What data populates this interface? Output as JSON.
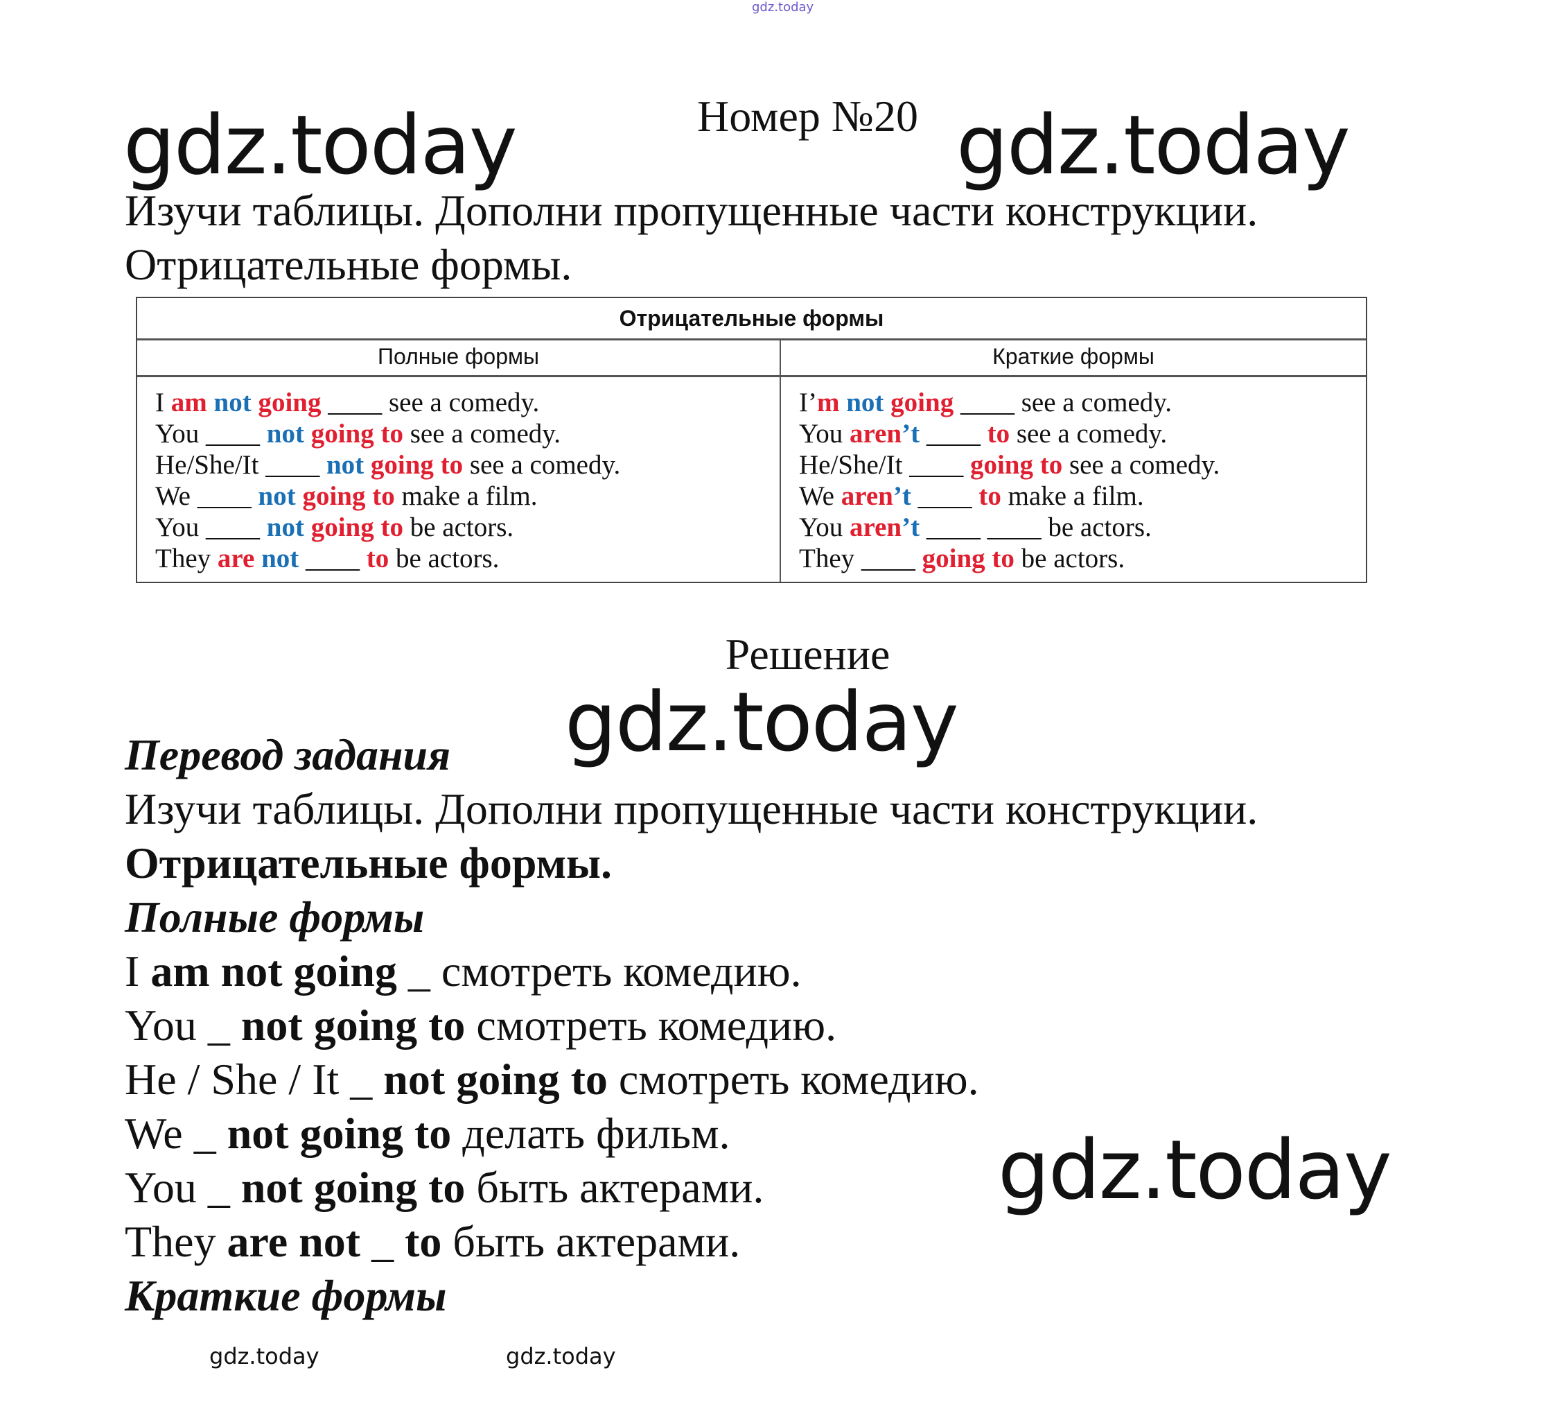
{
  "watermarks": {
    "top": "gdz.today",
    "large": "gdz.today",
    "small": "gdz.today"
  },
  "title": "Номер №20",
  "task": {
    "line1": "Изучи таблицы. Дополни пропущенные части конструкции.",
    "line2": "Отрицательные формы."
  },
  "colors": {
    "red": "#e02030",
    "blue": "#1a6fb5"
  },
  "table": {
    "header": "Отрицательные формы",
    "left_header": "Полные формы",
    "right_header": "Краткие формы",
    "left_rows": [
      [
        {
          "t": "I "
        },
        {
          "t": "am",
          "c": "r"
        },
        {
          "t": " "
        },
        {
          "t": "not",
          "c": "b"
        },
        {
          "t": " "
        },
        {
          "t": "going",
          "c": "r"
        },
        {
          "t": " ____ see a comedy."
        }
      ],
      [
        {
          "t": "You ____ "
        },
        {
          "t": "not",
          "c": "b"
        },
        {
          "t": " "
        },
        {
          "t": "going to",
          "c": "r"
        },
        {
          "t": " see a comedy."
        }
      ],
      [
        {
          "t": "He/She/It ____ "
        },
        {
          "t": "not",
          "c": "b"
        },
        {
          "t": " "
        },
        {
          "t": "going to",
          "c": "r"
        },
        {
          "t": " see a comedy."
        }
      ],
      [
        {
          "t": "We ____ "
        },
        {
          "t": "not",
          "c": "b"
        },
        {
          "t": " "
        },
        {
          "t": "going to",
          "c": "r"
        },
        {
          "t": " make a film."
        }
      ],
      [
        {
          "t": "You ____ "
        },
        {
          "t": "not",
          "c": "b"
        },
        {
          "t": " "
        },
        {
          "t": "going to",
          "c": "r"
        },
        {
          "t": " be actors."
        }
      ],
      [
        {
          "t": "They "
        },
        {
          "t": "are",
          "c": "r"
        },
        {
          "t": " "
        },
        {
          "t": "not",
          "c": "b"
        },
        {
          "t": " ____ "
        },
        {
          "t": "to",
          "c": "r"
        },
        {
          "t": " be actors."
        }
      ]
    ],
    "right_rows": [
      [
        {
          "t": "I’"
        },
        {
          "t": "m",
          "c": "r"
        },
        {
          "t": " "
        },
        {
          "t": "not",
          "c": "b"
        },
        {
          "t": " "
        },
        {
          "t": "going",
          "c": "r"
        },
        {
          "t": " ____ see a comedy."
        }
      ],
      [
        {
          "t": "You "
        },
        {
          "t": "aren",
          "c": "r"
        },
        {
          "t": "’t",
          "c": "b"
        },
        {
          "t": " ____ "
        },
        {
          "t": "to",
          "c": "r"
        },
        {
          "t": " see a comedy."
        }
      ],
      [
        {
          "t": "He/She/It ____ "
        },
        {
          "t": "going to",
          "c": "r"
        },
        {
          "t": " see a comedy."
        }
      ],
      [
        {
          "t": "We "
        },
        {
          "t": "aren",
          "c": "r"
        },
        {
          "t": "’t",
          "c": "b"
        },
        {
          "t": " ____ "
        },
        {
          "t": "to",
          "c": "r"
        },
        {
          "t": " make a film."
        }
      ],
      [
        {
          "t": "You "
        },
        {
          "t": "aren",
          "c": "r"
        },
        {
          "t": "’t",
          "c": "b"
        },
        {
          "t": " ____ ____ be actors."
        }
      ],
      [
        {
          "t": "They ____ "
        },
        {
          "t": "going to",
          "c": "r"
        },
        {
          "t": " be actors."
        }
      ]
    ]
  },
  "solution_title": "Решение",
  "translation": [
    [
      {
        "t": "Перевод задания",
        "s": "bi"
      }
    ],
    [
      {
        "t": "Изучи таблицы. Дополни пропущенные части конструкции."
      }
    ],
    [
      {
        "t": "Отрицательные формы.",
        "s": "bo"
      }
    ],
    [
      {
        "t": "Полные формы",
        "s": "bi"
      }
    ],
    [
      {
        "t": "I "
      },
      {
        "t": "am not going",
        "s": "bo"
      },
      {
        "t": " _ смотреть комедию."
      }
    ],
    [
      {
        "t": "You _ "
      },
      {
        "t": "not going to",
        "s": "bo"
      },
      {
        "t": " смотреть комедию."
      }
    ],
    [
      {
        "t": "He / She / It _ "
      },
      {
        "t": "not going to",
        "s": "bo"
      },
      {
        "t": " смотреть комедию."
      }
    ],
    [
      {
        "t": "We _ "
      },
      {
        "t": "not going to",
        "s": "bo"
      },
      {
        "t": " делать фильм."
      }
    ],
    [
      {
        "t": "You _ "
      },
      {
        "t": "not going to",
        "s": "bo"
      },
      {
        "t": " быть актерами."
      }
    ],
    [
      {
        "t": "They "
      },
      {
        "t": "are not",
        "s": "bo"
      },
      {
        "t": " _ "
      },
      {
        "t": "to",
        "s": "bo"
      },
      {
        "t": " быть актерами."
      }
    ],
    [
      {
        "t": "Краткие формы",
        "s": "bi"
      }
    ]
  ]
}
